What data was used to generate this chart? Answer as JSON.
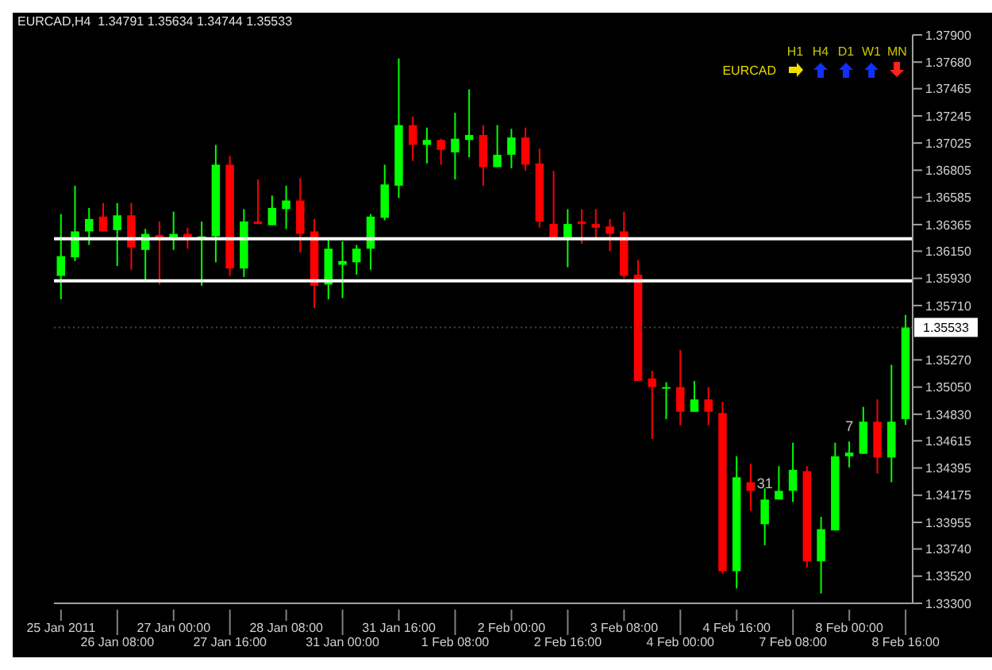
{
  "chart_data": {
    "type": "candlestick",
    "title": "EURCAD,H4  1.34791 1.35634 1.34744 1.35533",
    "categories": [
      "25 Jan 2011",
      null,
      null,
      null,
      "26 Jan 08:00",
      null,
      null,
      null,
      "27 Jan 00:00",
      null,
      null,
      null,
      "27 Jan 16:00",
      null,
      null,
      null,
      "28 Jan 08:00",
      null,
      null,
      null,
      "31 Jan 00:00",
      null,
      null,
      null,
      "31 Jan 16:00",
      null,
      null,
      null,
      "1 Feb 08:00",
      null,
      null,
      null,
      "2 Feb 00:00",
      null,
      null,
      null,
      "2 Feb 16:00",
      null,
      null,
      null,
      "3 Feb 08:00",
      null,
      null,
      null,
      "4 Feb 00:00",
      null,
      null,
      null,
      "4 Feb 16:00",
      null,
      null,
      null,
      "7 Feb 08:00",
      null,
      null,
      null,
      "8 Feb 00:00",
      null,
      null,
      null,
      "8 Feb 16:00"
    ],
    "ohlc": [
      [
        1.3595,
        1.3645,
        1.3576,
        1.3611
      ],
      [
        1.361,
        1.3668,
        1.3607,
        1.3631
      ],
      [
        1.3631,
        1.365,
        1.362,
        1.3641
      ],
      [
        1.3643,
        1.3654,
        1.3631,
        1.3631
      ],
      [
        1.3632,
        1.3654,
        1.3603,
        1.3644
      ],
      [
        1.3644,
        1.3654,
        1.36,
        1.3618
      ],
      [
        1.3616,
        1.3633,
        1.3592,
        1.3629
      ],
      [
        1.3628,
        1.3639,
        1.3588,
        1.3624
      ],
      [
        1.3625,
        1.3647,
        1.3616,
        1.3629
      ],
      [
        1.3629,
        1.3634,
        1.3617,
        1.3625
      ],
      [
        1.3625,
        1.3639,
        1.3587,
        1.3627
      ],
      [
        1.3627,
        1.3701,
        1.3606,
        1.3685
      ],
      [
        1.3685,
        1.3692,
        1.3595,
        1.3601
      ],
      [
        1.3601,
        1.3649,
        1.3594,
        1.3639
      ],
      [
        1.3639,
        1.3673,
        1.3637,
        1.3637
      ],
      [
        1.3636,
        1.366,
        1.3636,
        1.365
      ],
      [
        1.3649,
        1.3668,
        1.3633,
        1.3656
      ],
      [
        1.3656,
        1.3674,
        1.3614,
        1.3629
      ],
      [
        1.3631,
        1.3641,
        1.3569,
        1.3587
      ],
      [
        1.3588,
        1.3626,
        1.3576,
        1.3617
      ],
      [
        1.3604,
        1.3623,
        1.3577,
        1.3607
      ],
      [
        1.3606,
        1.362,
        1.3596,
        1.3617
      ],
      [
        1.3617,
        1.3645,
        1.36,
        1.3643
      ],
      [
        1.3642,
        1.3685,
        1.364,
        1.3669
      ],
      [
        1.3668,
        1.3771,
        1.3658,
        1.3717
      ],
      [
        1.3717,
        1.3724,
        1.3688,
        1.3701
      ],
      [
        1.3701,
        1.3715,
        1.3686,
        1.3705
      ],
      [
        1.3705,
        1.3706,
        1.3685,
        1.3697
      ],
      [
        1.3695,
        1.3727,
        1.3673,
        1.3706
      ],
      [
        1.3705,
        1.3746,
        1.3691,
        1.3709
      ],
      [
        1.3709,
        1.3717,
        1.3668,
        1.3683
      ],
      [
        1.3683,
        1.3717,
        1.3683,
        1.3693
      ],
      [
        1.3693,
        1.3714,
        1.3682,
        1.3707
      ],
      [
        1.3707,
        1.3715,
        1.368,
        1.3685
      ],
      [
        1.3686,
        1.3698,
        1.3634,
        1.3639
      ],
      [
        1.3637,
        1.368,
        1.3625,
        1.3625
      ],
      [
        1.3625,
        1.3649,
        1.3602,
        1.3637
      ],
      [
        1.3639,
        1.3649,
        1.3621,
        1.3637
      ],
      [
        1.3637,
        1.3649,
        1.3625,
        1.3634
      ],
      [
        1.3635,
        1.3641,
        1.3615,
        1.3629
      ],
      [
        1.3631,
        1.3647,
        1.3593,
        1.3595
      ],
      [
        1.3596,
        1.3608,
        1.351,
        1.351
      ],
      [
        1.3512,
        1.3518,
        1.3463,
        1.3505
      ],
      [
        1.3504,
        1.3509,
        1.3479,
        1.3505
      ],
      [
        1.3505,
        1.3535,
        1.3474,
        1.3485
      ],
      [
        1.3485,
        1.351,
        1.3485,
        1.3495
      ],
      [
        1.3495,
        1.3505,
        1.3474,
        1.3485
      ],
      [
        1.3484,
        1.3493,
        1.3354,
        1.3356
      ],
      [
        1.3356,
        1.3449,
        1.3342,
        1.3432
      ],
      [
        1.3428,
        1.3443,
        1.3405,
        1.3421
      ],
      [
        1.3394,
        1.3423,
        1.3377,
        1.3414
      ],
      [
        1.3414,
        1.3441,
        1.3414,
        1.3421
      ],
      [
        1.3421,
        1.346,
        1.3412,
        1.3438
      ],
      [
        1.3437,
        1.3441,
        1.3359,
        1.3364
      ],
      [
        1.3364,
        1.34,
        1.3338,
        1.339
      ],
      [
        1.3389,
        1.346,
        1.3389,
        1.3449
      ],
      [
        1.3449,
        1.3461,
        1.344,
        1.3452
      ],
      [
        1.3451,
        1.3489,
        1.3451,
        1.3477
      ],
      [
        1.3477,
        1.3495,
        1.3435,
        1.3448
      ],
      [
        1.3448,
        1.3523,
        1.3428,
        1.3477
      ],
      [
        1.34791,
        1.35634,
        1.34744,
        1.35533
      ]
    ],
    "colors": [
      "#00ff00",
      "#00ff00",
      "#00ff00",
      "#ff0000",
      "#00ff00",
      "#ff0000",
      "#00ff00",
      "#ff0000",
      "#00ff00",
      "#ff0000",
      "#00ff00",
      "#00ff00",
      "#ff0000",
      "#00ff00",
      "#ff0000",
      "#00ff00",
      "#00ff00",
      "#ff0000",
      "#ff0000",
      "#00ff00",
      "#00ff00",
      "#00ff00",
      "#00ff00",
      "#00ff00",
      "#00ff00",
      "#ff0000",
      "#00ff00",
      "#ff0000",
      "#00ff00",
      "#00ff00",
      "#ff0000",
      "#00ff00",
      "#00ff00",
      "#ff0000",
      "#ff0000",
      "#ff0000",
      "#00ff00",
      "#ff0000",
      "#ff0000",
      "#ff0000",
      "#ff0000",
      "#ff0000",
      "#ff0000",
      "#00ff00",
      "#ff0000",
      "#00ff00",
      "#ff0000",
      "#ff0000",
      "#00ff00",
      "#ff0000",
      "#00ff00",
      "#00ff00",
      "#00ff00",
      "#ff0000",
      "#00ff00",
      "#00ff00",
      "#00ff00",
      "#00ff00",
      "#ff0000",
      "#00ff00",
      "#00ff00"
    ],
    "ylim": [
      1.333,
      1.379
    ],
    "yticks": [
      {
        "value": 1.379,
        "label": "1.37900"
      },
      {
        "value": 1.3768,
        "label": "1.37680"
      },
      {
        "value": 1.37465,
        "label": "1.37465"
      },
      {
        "value": 1.37245,
        "label": "1.37245"
      },
      {
        "value": 1.37025,
        "label": "1.37025"
      },
      {
        "value": 1.36805,
        "label": "1.36805"
      },
      {
        "value": 1.36585,
        "label": "1.36585"
      },
      {
        "value": 1.36365,
        "label": "1.36365"
      },
      {
        "value": 1.3615,
        "label": "1.36150"
      },
      {
        "value": 1.3593,
        "label": "1.35930"
      },
      {
        "value": 1.3571,
        "label": "1.35710"
      },
      {
        "value": 1.3527,
        "label": "1.35270"
      },
      {
        "value": 1.3505,
        "label": "1.35050"
      },
      {
        "value": 1.3483,
        "label": "1.34830"
      },
      {
        "value": 1.34615,
        "label": "1.34615"
      },
      {
        "value": 1.34395,
        "label": "1.34395"
      },
      {
        "value": 1.34175,
        "label": "1.34175"
      },
      {
        "value": 1.33955,
        "label": "1.33955"
      },
      {
        "value": 1.3374,
        "label": "1.33740"
      },
      {
        "value": 1.3352,
        "label": "1.33520"
      },
      {
        "value": 1.333,
        "label": "1.33300"
      }
    ],
    "ref_lines": [
      {
        "axis": "y",
        "value": 1.3625,
        "color": "#ffffff"
      },
      {
        "axis": "y",
        "value": 1.3591,
        "color": "#ffffff"
      },
      {
        "axis": "y",
        "value": 1.35533,
        "label": "1.35533",
        "color": "#3c4a3c",
        "line_style": "dotted"
      }
    ],
    "annotations": [
      "EURCAD",
      "H1",
      "H4",
      "D1",
      "W1",
      "MN",
      {
        "text": "31",
        "y": 1.3417
      },
      {
        "text": "7",
        "y": 1.3463
      }
    ]
  }
}
